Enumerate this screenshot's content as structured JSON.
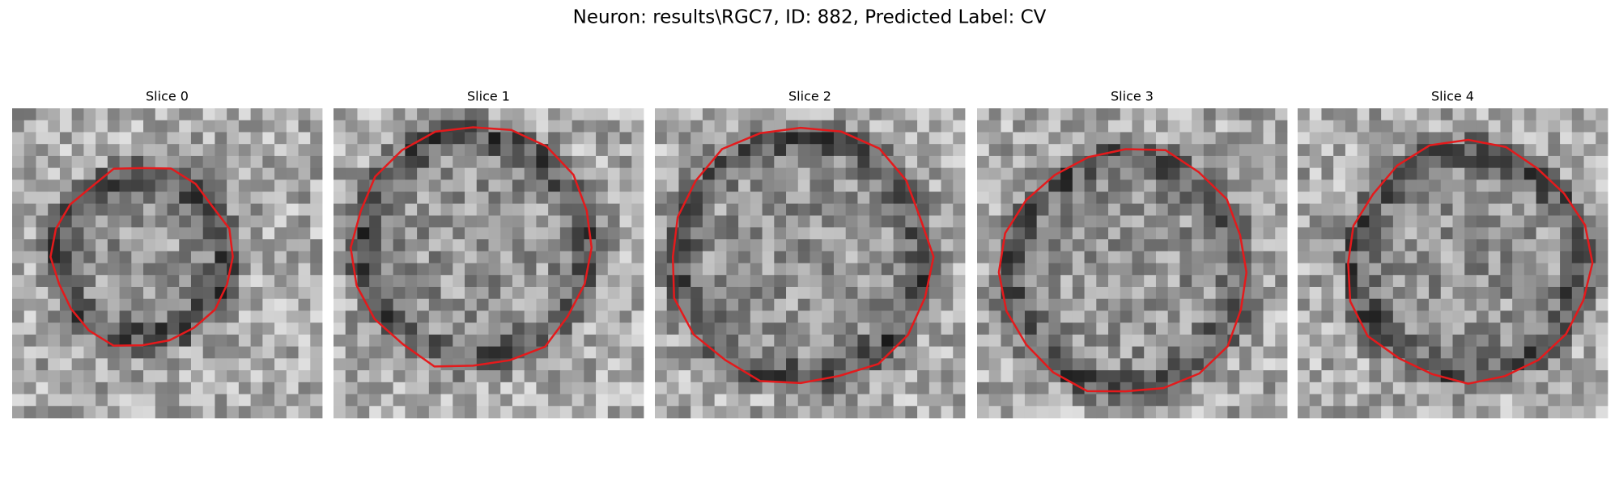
{
  "title": "Neuron: results\\RGC7, ID: 882, Predicted Label: CV",
  "panels": [
    {
      "title": "Slice 0"
    },
    {
      "title": "Slice 1"
    },
    {
      "title": "Slice 2"
    },
    {
      "title": "Slice 3"
    },
    {
      "title": "Slice 4"
    }
  ]
}
